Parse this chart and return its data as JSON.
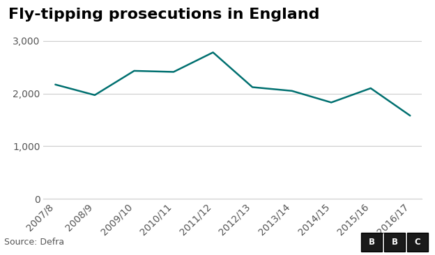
{
  "title": "Fly-tipping prosecutions in England",
  "categories": [
    "2007/8",
    "2008/9",
    "2009/10",
    "2010/11",
    "2011/12",
    "2012/13",
    "2013/14",
    "2014/15",
    "2015/16",
    "2016/17"
  ],
  "values": [
    2170,
    1970,
    2430,
    2410,
    2780,
    2120,
    2050,
    1830,
    2100,
    1580
  ],
  "line_color": "#007070",
  "line_width": 1.8,
  "ylim": [
    0,
    3000
  ],
  "yticks": [
    0,
    1000,
    2000,
    3000
  ],
  "ytick_labels": [
    "0",
    "1,000",
    "2,000",
    "3,000"
  ],
  "background_color": "#ffffff",
  "grid_color": "#cccccc",
  "title_fontsize": 16,
  "tick_fontsize": 10,
  "source_text": "Source: Defra",
  "source_fontsize": 9,
  "footer_bg_color": "#f0f0f0"
}
